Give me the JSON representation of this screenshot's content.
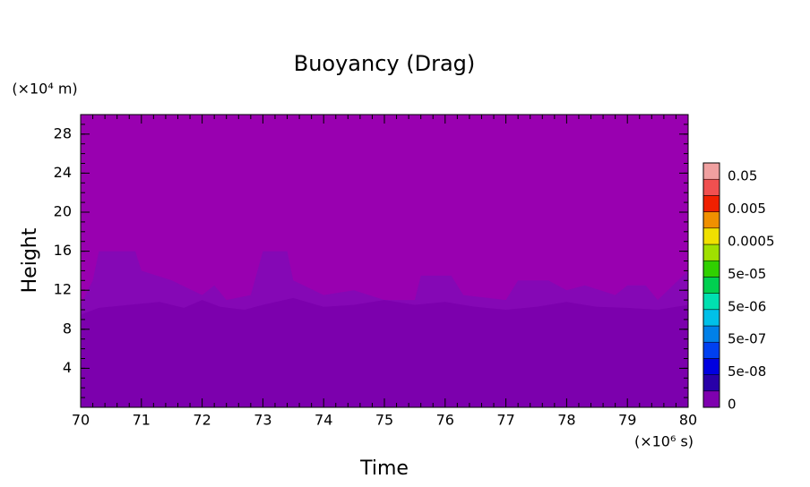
{
  "chart_data": {
    "type": "contour",
    "title": "Buoyancy (Drag)",
    "x_label": "Time",
    "y_label": "Height",
    "x_multiplier": "(×10⁶ s)",
    "y_multiplier": "(×10⁴ m)",
    "xlim": [
      70,
      80
    ],
    "ylim": [
      0,
      30
    ],
    "xticks": [
      70,
      71,
      72,
      73,
      74,
      75,
      76,
      77,
      78,
      79,
      80
    ],
    "yticks": [
      4,
      8,
      12,
      16,
      20,
      24,
      28
    ],
    "background_color": "#9900b0",
    "series": [
      {
        "color": "#8508b5",
        "x": [
          70,
          70.2,
          70.3,
          70.9,
          71,
          71.5,
          72,
          72.2,
          72.4,
          72.8,
          73,
          73.4,
          73.5,
          74,
          74.5,
          75,
          75.5,
          75.6,
          76.1,
          76.3,
          77,
          77.2,
          77.7,
          78,
          78.3,
          78.8,
          79,
          79.3,
          79.5,
          80
        ],
        "values": [
          10.5,
          13,
          16,
          16,
          14,
          13,
          11.5,
          12.5,
          11,
          11.5,
          16,
          16,
          13,
          11.5,
          12,
          11,
          11,
          13.5,
          13.5,
          11.5,
          11,
          13,
          13,
          12,
          12.5,
          11.5,
          12.5,
          12.5,
          11,
          14
        ]
      },
      {
        "color": "#7c00ad",
        "x": [
          70,
          70.3,
          70.8,
          71.3,
          71.7,
          72,
          72.3,
          72.7,
          73,
          73.5,
          74,
          74.5,
          75,
          75.5,
          76,
          76.5,
          77,
          77.5,
          78,
          78.5,
          79,
          79.5,
          80
        ],
        "values": [
          9.5,
          10.2,
          10.5,
          10.8,
          10.2,
          11,
          10.3,
          10,
          10.5,
          11.2,
          10.3,
          10.5,
          11,
          10.5,
          10.8,
          10.3,
          10,
          10.3,
          10.8,
          10.3,
          10.2,
          10,
          10.5
        ]
      }
    ],
    "colorbar": {
      "colors": [
        "#7f00af",
        "#2800a8",
        "#0000e0",
        "#0040f0",
        "#0080e8",
        "#00c0e8",
        "#00e0b0",
        "#00d050",
        "#30d000",
        "#a0e000",
        "#f0e000",
        "#f09000",
        "#f02000",
        "#f05050",
        "#f0a0a0"
      ],
      "labels": [
        "0",
        "5e-08",
        "5e-07",
        "5e-06",
        "5e-05",
        "0.0005",
        "0.005",
        "0.05"
      ]
    }
  }
}
